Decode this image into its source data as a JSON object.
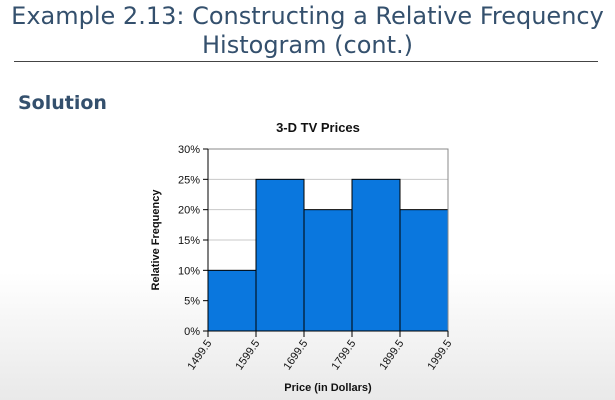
{
  "slide": {
    "title_line1": "Example 2.13: Constructing a Relative Frequency",
    "title_line2": "Histogram (cont.)",
    "section_heading": "Solution"
  },
  "colors": {
    "title": "#34506d",
    "bar_fill": "#0a77de",
    "bar_stroke": "#000000"
  },
  "chart_data": {
    "type": "bar",
    "title": "3-D TV Prices",
    "xlabel": "Price (in Dollars)",
    "ylabel": "Relative Frequency",
    "bin_edges": [
      1499.5,
      1599.5,
      1699.5,
      1799.5,
      1899.5,
      1999.5
    ],
    "x_tick_labels": [
      "1499.5",
      "1599.5",
      "1699.5",
      "1799.5",
      "1899.5",
      "1999.5"
    ],
    "values": [
      0.1,
      0.25,
      0.2,
      0.25,
      0.2
    ],
    "ylim": [
      0,
      0.3
    ],
    "y_ticks": [
      0,
      0.05,
      0.1,
      0.15,
      0.2,
      0.25,
      0.3
    ],
    "y_tick_labels": [
      "0%",
      "5%",
      "10%",
      "15%",
      "20%",
      "25%",
      "30%"
    ],
    "grid": true
  }
}
